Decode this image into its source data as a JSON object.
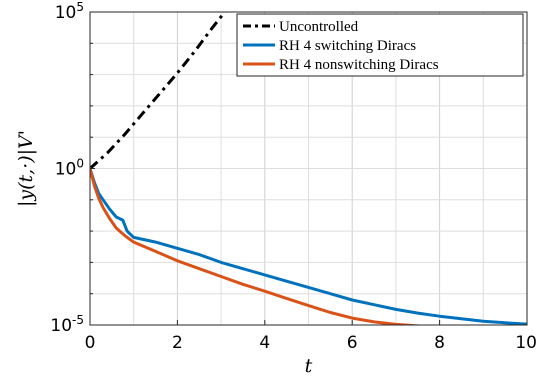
{
  "chart_data": {
    "type": "line",
    "title": "",
    "xlabel": "t",
    "ylabel": "|y(t,·)|V'",
    "xlim": [
      0,
      10
    ],
    "ylim_log10": [
      -5,
      5
    ],
    "y_scale": "log",
    "grid": true,
    "legend_position": "top-right",
    "x_ticks": [
      {
        "value": 0,
        "label": "0"
      },
      {
        "value": 2,
        "label": "2"
      },
      {
        "value": 4,
        "label": "4"
      },
      {
        "value": 6,
        "label": "6"
      },
      {
        "value": 8,
        "label": "8"
      },
      {
        "value": 10,
        "label": "10"
      }
    ],
    "y_ticks": [
      {
        "exp": 5,
        "base": "10",
        "sup": "5"
      },
      {
        "exp": 0,
        "base": "10",
        "sup": "0"
      },
      {
        "exp": -5,
        "base": "10",
        "sup": "-5"
      }
    ],
    "series": [
      {
        "name": "Uncontrolled",
        "color": "#000000",
        "style": "dash-dot",
        "x": [
          0,
          0.4,
          0.8,
          1.2,
          1.6,
          2.0,
          2.4,
          2.8,
          3.0,
          3.2
        ],
        "log10_y": [
          0.0,
          0.5,
          1.1,
          1.75,
          2.4,
          3.05,
          3.75,
          4.5,
          4.85,
          5.2
        ]
      },
      {
        "name": "RH 4 switching Diracs",
        "color": "#0072bd",
        "style": "solid",
        "x": [
          0,
          0.1,
          0.2,
          0.3,
          0.45,
          0.6,
          0.75,
          0.85,
          1.0,
          1.5,
          2.0,
          2.5,
          3.0,
          3.5,
          4.0,
          4.5,
          5.0,
          5.5,
          6.0,
          6.5,
          7.0,
          7.5,
          8.0,
          8.5,
          9.0,
          9.5,
          10.0
        ],
        "log10_y": [
          0.0,
          -0.45,
          -0.8,
          -1.0,
          -1.3,
          -1.55,
          -1.65,
          -2.0,
          -2.2,
          -2.35,
          -2.55,
          -2.75,
          -3.0,
          -3.2,
          -3.4,
          -3.6,
          -3.8,
          -4.0,
          -4.2,
          -4.35,
          -4.5,
          -4.62,
          -4.72,
          -4.8,
          -4.88,
          -4.93,
          -4.97
        ]
      },
      {
        "name": "RH 4 nonswitching Diracs",
        "color": "#d95319",
        "style": "solid",
        "x": [
          0,
          0.1,
          0.2,
          0.3,
          0.45,
          0.6,
          0.8,
          1.0,
          1.5,
          2.0,
          2.5,
          3.0,
          3.5,
          4.0,
          4.5,
          5.0,
          5.5,
          6.0,
          6.5,
          7.0,
          7.5,
          8.0,
          8.5,
          9.0,
          9.5,
          10.0
        ],
        "log10_y": [
          0.0,
          -0.55,
          -0.95,
          -1.25,
          -1.6,
          -1.9,
          -2.15,
          -2.35,
          -2.65,
          -2.95,
          -3.2,
          -3.45,
          -3.7,
          -3.92,
          -4.15,
          -4.38,
          -4.6,
          -4.78,
          -4.9,
          -4.98,
          -5.03,
          -5.07,
          -5.1,
          -5.14,
          -5.18,
          -5.22
        ]
      }
    ]
  }
}
